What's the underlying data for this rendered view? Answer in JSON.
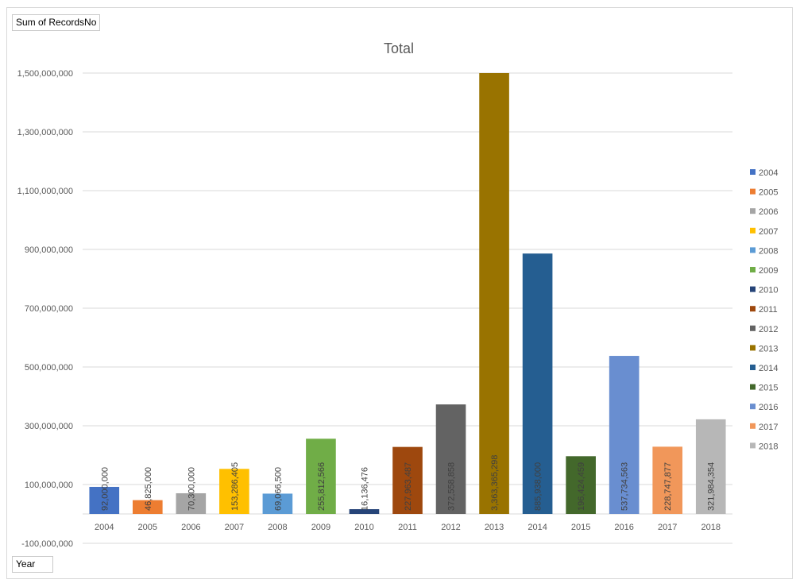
{
  "filter_buttons": {
    "value_field": "Sum of RecordsNo",
    "axis_field": "Year"
  },
  "chart_data": {
    "type": "bar",
    "title": "Total",
    "xlabel": "",
    "ylabel": "",
    "categories": [
      "2004",
      "2005",
      "2006",
      "2007",
      "2008",
      "2009",
      "2010",
      "2011",
      "2012",
      "2013",
      "2014",
      "2015",
      "2016",
      "2017",
      "2018"
    ],
    "values": [
      92000000,
      46825000,
      70300000,
      153286405,
      69066500,
      255812566,
      16136476,
      227963487,
      372558858,
      3363365298,
      885938000,
      196424459,
      537734563,
      228747877,
      321984354
    ],
    "data_labels": [
      "92,000,000",
      "46,825,000",
      "70,300,000",
      "153,286,405",
      "69,066,500",
      "255,812,566",
      "16,136,476",
      "227,963,487",
      "372,558,858",
      "3,363,365,298",
      "885,938,000",
      "196,424,459",
      "537,734,563",
      "228,747,877",
      "321,984,354"
    ],
    "colors": [
      "#4472c4",
      "#ed7d31",
      "#a5a5a5",
      "#ffc000",
      "#5b9bd5",
      "#70ad47",
      "#264478",
      "#9e480e",
      "#636363",
      "#997300",
      "#255e91",
      "#43682b",
      "#698ed0",
      "#f1975a",
      "#b7b7b7"
    ],
    "ylim": [
      -100000000,
      1500000000
    ],
    "yticks": [
      -100000000,
      100000000,
      300000000,
      500000000,
      700000000,
      900000000,
      1100000000,
      1300000000,
      1500000000
    ],
    "ytick_labels": [
      "-100,000,000",
      "100,000,000",
      "300,000,000",
      "500,000,000",
      "700,000,000",
      "900,000,000",
      "1,100,000,000",
      "1,300,000,000",
      "1,500,000,000"
    ],
    "grid": true,
    "legend": {
      "position": "right",
      "entries": [
        "2004",
        "2005",
        "2006",
        "2007",
        "2008",
        "2009",
        "2010",
        "2011",
        "2012",
        "2013",
        "2014",
        "2015",
        "2016",
        "2017",
        "2018"
      ]
    }
  }
}
